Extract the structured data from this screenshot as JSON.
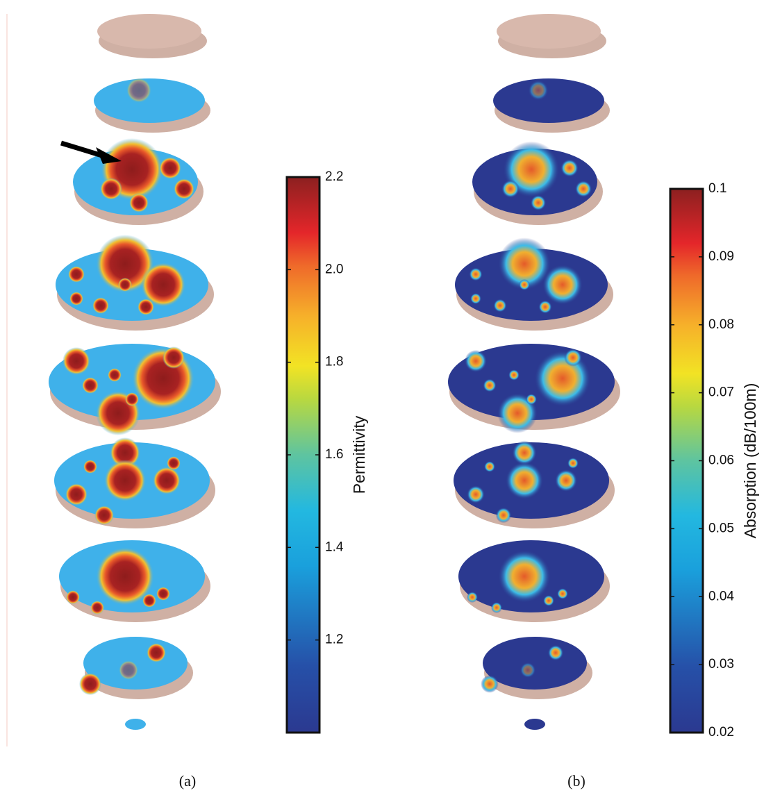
{
  "chart_data": [
    {
      "type": "colorbar",
      "colormap": "jet",
      "label": "Permittivity",
      "caption": "(a)",
      "ylim": [
        1.0,
        2.2
      ],
      "yticks": [
        1.2,
        1.4,
        1.6,
        1.8,
        {
          "value": 2.0,
          "label": "2.0"
        },
        2.2
      ]
    },
    {
      "type": "colorbar",
      "colormap": "jet",
      "label": "Absorption (dB/100m)",
      "caption": "(b)",
      "ylim": [
        0.02,
        0.1
      ],
      "yticks": [
        0.02,
        0.03,
        0.04,
        0.05,
        0.06,
        0.07,
        0.08,
        0.09,
        0.1
      ]
    }
  ]
}
